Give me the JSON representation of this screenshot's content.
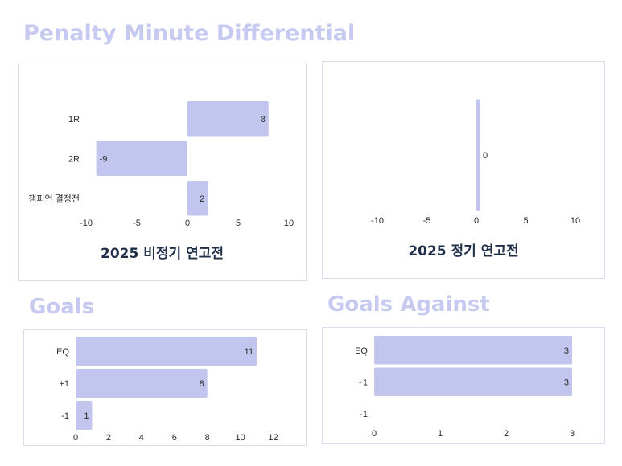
{
  "page": {
    "title": "Penalty Minute Differential",
    "goals_title": "Goals",
    "goals_against_title": "Goals Against"
  },
  "colors": {
    "bar": "#c2c6ee",
    "heading": "#c6c9f0",
    "border": "#d9dbef",
    "text": "#2b2b2b",
    "chart_title": "#1f2f4a"
  },
  "chart_data": [
    {
      "id": "pim-exhibition",
      "type": "bar",
      "orientation": "horizontal",
      "title": "2025 비정기 연고전",
      "categories": [
        "1R",
        "2R",
        "챔피언 결정전"
      ],
      "values": [
        8,
        -9,
        2
      ],
      "xlim": [
        -10,
        10
      ],
      "xticks": [
        -10,
        -5,
        0,
        5,
        10
      ],
      "data_labels": true,
      "grid": false
    },
    {
      "id": "pim-regular",
      "type": "bar",
      "orientation": "horizontal",
      "title": "2025 정기 연고전",
      "categories": [
        ""
      ],
      "values": [
        0
      ],
      "xlim": [
        -10,
        10
      ],
      "xticks": [
        -10,
        -5,
        0,
        5,
        10
      ],
      "data_labels": true,
      "grid": false
    },
    {
      "id": "goals",
      "type": "bar",
      "orientation": "horizontal",
      "title": "",
      "categories": [
        "EQ",
        "+1",
        "-1"
      ],
      "values": [
        11,
        8,
        1
      ],
      "xlim": [
        0,
        13
      ],
      "xticks": [
        0,
        2,
        4,
        6,
        8,
        10,
        12
      ],
      "data_labels": true,
      "grid": false
    },
    {
      "id": "goals-against",
      "type": "bar",
      "orientation": "horizontal",
      "title": "",
      "categories": [
        "EQ",
        "+1",
        "-1"
      ],
      "values": [
        3,
        3,
        0
      ],
      "xlim": [
        0,
        3
      ],
      "xticks": [
        0,
        1,
        2,
        3
      ],
      "data_labels": true,
      "grid": false
    }
  ]
}
